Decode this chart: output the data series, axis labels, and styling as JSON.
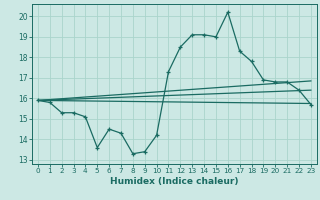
{
  "title": "",
  "xlabel": "Humidex (Indice chaleur)",
  "bg_color": "#cce8e4",
  "grid_color": "#aad4cc",
  "line_color": "#1a6b62",
  "spine_color": "#1a6b62",
  "xlim": [
    -0.5,
    23.5
  ],
  "ylim": [
    12.8,
    20.6
  ],
  "xticks": [
    0,
    1,
    2,
    3,
    4,
    5,
    6,
    7,
    8,
    9,
    10,
    11,
    12,
    13,
    14,
    15,
    16,
    17,
    18,
    19,
    20,
    21,
    22,
    23
  ],
  "yticks": [
    13,
    14,
    15,
    16,
    17,
    18,
    19,
    20
  ],
  "main_line_x": [
    0,
    1,
    2,
    3,
    4,
    5,
    6,
    7,
    8,
    9,
    10,
    11,
    12,
    13,
    14,
    15,
    16,
    17,
    18,
    19,
    20,
    21,
    22,
    23
  ],
  "main_line_y": [
    15.9,
    15.8,
    15.3,
    15.3,
    15.1,
    13.6,
    14.5,
    14.3,
    13.3,
    13.4,
    14.2,
    17.3,
    18.5,
    19.1,
    19.1,
    19.0,
    20.2,
    18.3,
    17.8,
    16.9,
    16.8,
    16.8,
    16.4,
    15.7
  ],
  "trend1_x": [
    0,
    23
  ],
  "trend1_y": [
    15.9,
    15.75
  ],
  "trend2_x": [
    0,
    23
  ],
  "trend2_y": [
    15.9,
    16.4
  ],
  "trend3_x": [
    0,
    23
  ],
  "trend3_y": [
    15.9,
    16.85
  ]
}
